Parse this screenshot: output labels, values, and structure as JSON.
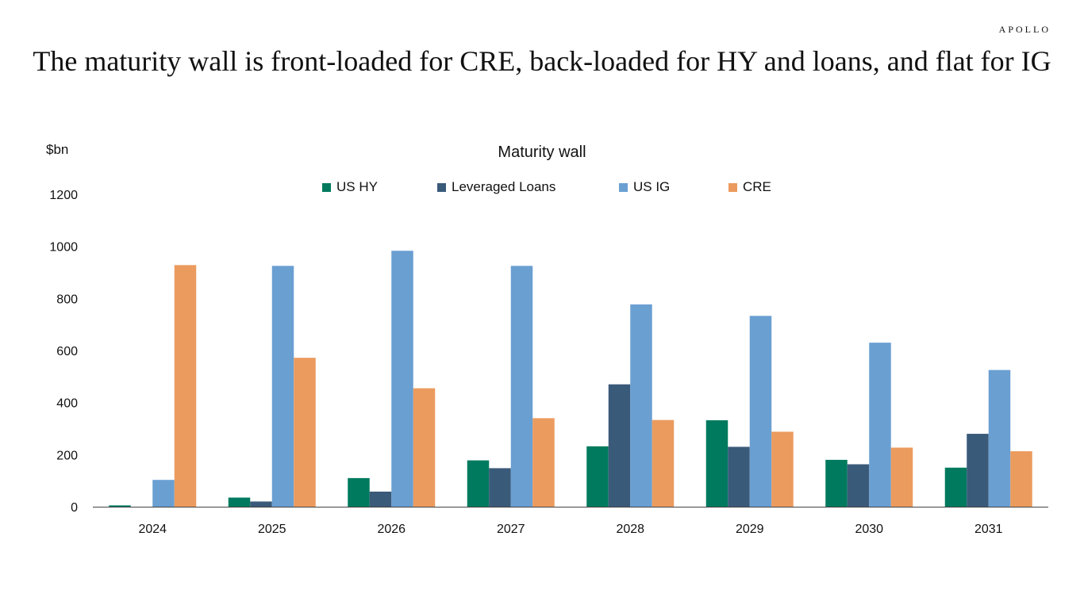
{
  "brand": "APOLLO",
  "headline": "The maturity wall is front-loaded for CRE, back-loaded for HY and loans, and flat for IG",
  "colors": {
    "us_hy": "#007A5E",
    "leveraged_loans": "#3A5A7A",
    "us_ig": "#6A9FD2",
    "cre": "#EB9B5E",
    "axis": "#444444"
  },
  "chart_data": {
    "type": "bar",
    "title": "Maturity wall",
    "ylabel": "$bn",
    "xlabel": "",
    "ylim": [
      0,
      1200
    ],
    "yticks": [
      "0",
      "200",
      "400",
      "600",
      "800",
      "1000",
      "1200"
    ],
    "categories": [
      "2024",
      "2025",
      "2026",
      "2027",
      "2028",
      "2029",
      "2030",
      "2031"
    ],
    "legend_position": "top-center",
    "grid": false,
    "series": [
      {
        "name": "US HY",
        "color": "#007A5E",
        "values": [
          5,
          35,
          110,
          178,
          232,
          332,
          180,
          150
        ]
      },
      {
        "name": "Leveraged Loans",
        "color": "#3A5A7A",
        "values": [
          0,
          20,
          58,
          148,
          470,
          230,
          163,
          280
        ]
      },
      {
        "name": "US IG",
        "color": "#6A9FD2",
        "values": [
          103,
          925,
          983,
          925,
          777,
          733,
          630,
          525
        ]
      },
      {
        "name": "CRE",
        "color": "#EB9B5E",
        "values": [
          928,
          572,
          455,
          340,
          333,
          288,
          227,
          213
        ]
      }
    ]
  }
}
